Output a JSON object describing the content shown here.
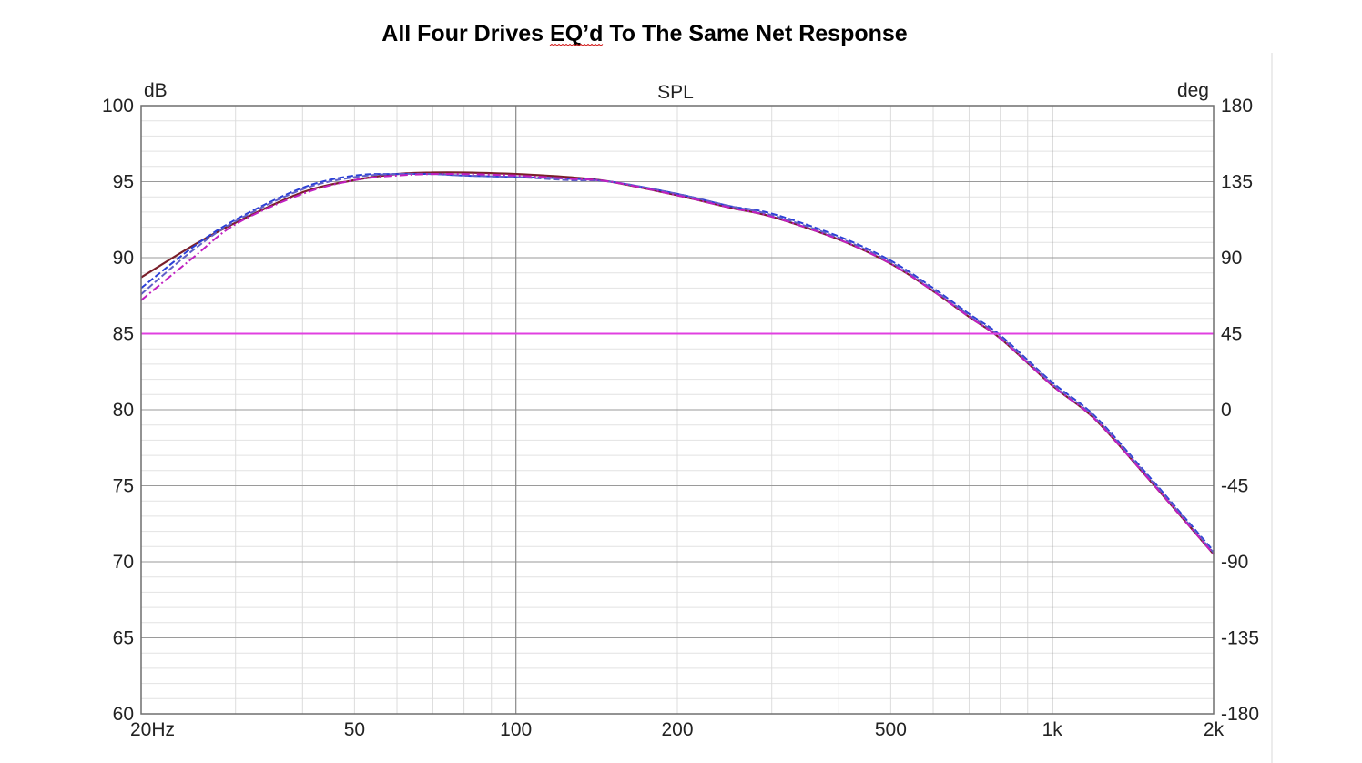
{
  "chart_data": {
    "type": "line",
    "title": "All Four Drives EQ’d To The Same Net Response",
    "subtitle": "SPL",
    "ylabel": "dB",
    "y2label": "deg",
    "x_scale": "log",
    "xlim": [
      20,
      2000
    ],
    "ylim": [
      60,
      100
    ],
    "y2lim": [
      -180,
      180
    ],
    "grid": true,
    "x_tick_values": [
      20,
      50,
      100,
      200,
      500,
      1000,
      2000
    ],
    "x_tick_labels": [
      "20Hz",
      "50",
      "100",
      "200",
      "500",
      "1k",
      "2k"
    ],
    "y_ticks": [
      "100",
      "95",
      "90",
      "85",
      "80",
      "75",
      "70",
      "65",
      "60"
    ],
    "y2_ticks": [
      "180",
      "135",
      "90",
      "45",
      "0",
      "-45",
      "-90",
      "-135",
      "-180"
    ],
    "series": [
      {
        "color": "#7a1f2a",
        "style": "solid",
        "x": [
          20,
          25,
          30,
          40,
          50,
          60,
          70,
          80,
          100,
          125,
          150,
          200,
          250,
          300,
          400,
          500,
          600,
          700,
          800,
          1000,
          1200,
          1500,
          2000
        ],
        "y": [
          88.7,
          90.8,
          92.3,
          94.3,
          95.1,
          95.5,
          95.6,
          95.6,
          95.5,
          95.3,
          95.0,
          94.1,
          93.3,
          92.7,
          91.2,
          89.6,
          87.8,
          86.1,
          84.7,
          81.6,
          79.4,
          75.6,
          70.5
        ]
      },
      {
        "color": "#2a3fd6",
        "style": "dashed",
        "x": [
          20,
          25,
          30,
          40,
          50,
          60,
          70,
          80,
          100,
          125,
          150,
          200,
          250,
          300,
          400,
          500,
          600,
          700,
          800,
          1000,
          1200,
          1500,
          2000
        ],
        "y": [
          88.0,
          90.7,
          92.5,
          94.6,
          95.4,
          95.5,
          95.5,
          95.4,
          95.3,
          95.2,
          95.0,
          94.2,
          93.4,
          92.9,
          91.4,
          89.8,
          88.0,
          86.3,
          84.9,
          81.8,
          79.6,
          75.8,
          70.7
        ]
      },
      {
        "color": "#6060c8",
        "style": "dashed",
        "x": [
          20,
          25,
          30,
          40,
          50,
          60,
          70,
          80,
          100,
          125,
          150,
          200,
          250,
          300,
          400,
          500,
          600,
          700,
          800,
          1000,
          1200,
          1500,
          2000
        ],
        "y": [
          87.6,
          90.5,
          92.4,
          94.5,
          95.3,
          95.5,
          95.5,
          95.4,
          95.3,
          95.1,
          95.0,
          94.2,
          93.4,
          92.8,
          91.3,
          89.7,
          87.9,
          86.2,
          84.8,
          81.7,
          79.5,
          75.7,
          70.6
        ]
      },
      {
        "color": "#c020c0",
        "style": "dashdot",
        "x": [
          20,
          25,
          30,
          40,
          50,
          60,
          70,
          80,
          100,
          125,
          150,
          200,
          250,
          300,
          400,
          500,
          600,
          700,
          800,
          1000,
          1200,
          1500,
          2000
        ],
        "y": [
          87.2,
          90.0,
          92.2,
          94.2,
          95.1,
          95.4,
          95.5,
          95.5,
          95.4,
          95.2,
          95.0,
          94.1,
          93.3,
          92.7,
          91.2,
          89.6,
          87.8,
          86.1,
          84.7,
          81.6,
          79.4,
          75.6,
          70.5
        ]
      },
      {
        "color": "#e040e0",
        "style": "solid",
        "x": [
          20,
          2000
        ],
        "y": [
          85,
          85
        ]
      }
    ]
  }
}
